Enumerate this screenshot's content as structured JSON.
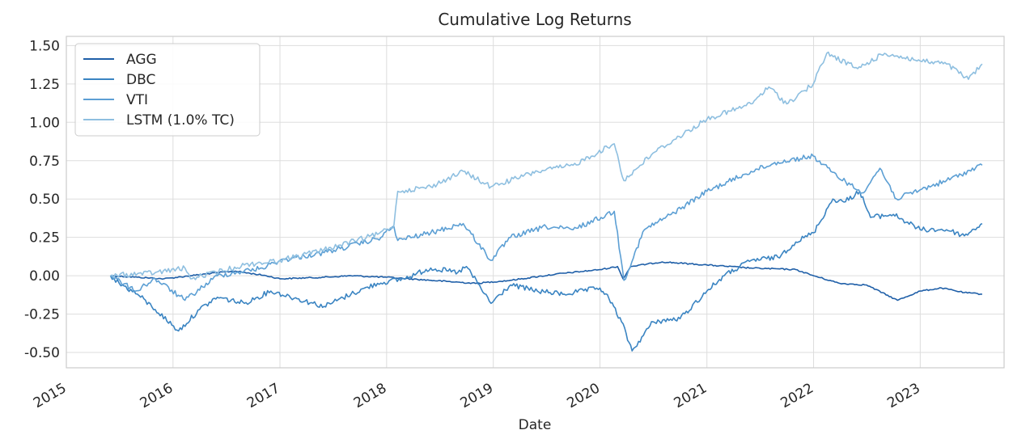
{
  "chart_data": {
    "type": "line",
    "title": "Cumulative Log Returns",
    "xlabel": "Date",
    "ylabel": "",
    "xlim": [
      "2015-01-01",
      "2023-10-15"
    ],
    "ylim": [
      -0.6,
      1.56
    ],
    "grid": true,
    "legend_position": "top-left",
    "x_ticks": [
      "2015",
      "2016",
      "2017",
      "2018",
      "2019",
      "2020",
      "2021",
      "2022",
      "2023"
    ],
    "y_ticks": [
      "-0.50",
      "-0.25",
      "0.00",
      "0.25",
      "0.50",
      "0.75",
      "1.00",
      "1.25",
      "1.50"
    ],
    "y_tick_values": [
      -0.5,
      -0.25,
      0,
      0.25,
      0.5,
      0.75,
      1.0,
      1.25,
      1.5
    ],
    "series": [
      {
        "name": "AGG",
        "color": "#1f5fa8",
        "points": [
          [
            "2015-06-01",
            0.0
          ],
          [
            "2015-09-01",
            -0.01
          ],
          [
            "2015-12-01",
            -0.02
          ],
          [
            "2016-03-01",
            0.0
          ],
          [
            "2016-06-01",
            0.02
          ],
          [
            "2016-08-01",
            0.03
          ],
          [
            "2016-11-15",
            0.0
          ],
          [
            "2017-01-01",
            -0.02
          ],
          [
            "2017-06-01",
            -0.01
          ],
          [
            "2017-09-01",
            0.0
          ],
          [
            "2018-01-01",
            -0.01
          ],
          [
            "2018-06-01",
            -0.03
          ],
          [
            "2018-11-01",
            -0.05
          ],
          [
            "2019-03-01",
            -0.03
          ],
          [
            "2019-08-01",
            0.01
          ],
          [
            "2020-01-01",
            0.04
          ],
          [
            "2020-03-01",
            0.06
          ],
          [
            "2020-03-20",
            -0.02
          ],
          [
            "2020-04-15",
            0.06
          ],
          [
            "2020-08-01",
            0.09
          ],
          [
            "2021-01-01",
            0.07
          ],
          [
            "2021-06-01",
            0.05
          ],
          [
            "2021-11-01",
            0.04
          ],
          [
            "2022-01-01",
            0.0
          ],
          [
            "2022-04-01",
            -0.05
          ],
          [
            "2022-07-01",
            -0.06
          ],
          [
            "2022-10-15",
            -0.16
          ],
          [
            "2023-01-01",
            -0.1
          ],
          [
            "2023-03-15",
            -0.08
          ],
          [
            "2023-06-01",
            -0.11
          ],
          [
            "2023-08-01",
            -0.12
          ]
        ]
      },
      {
        "name": "DBC",
        "color": "#3a84c2",
        "points": [
          [
            "2015-06-01",
            0.0
          ],
          [
            "2015-07-01",
            -0.05
          ],
          [
            "2015-09-01",
            -0.12
          ],
          [
            "2015-11-01",
            -0.22
          ],
          [
            "2016-01-20",
            -0.36
          ],
          [
            "2016-04-01",
            -0.22
          ],
          [
            "2016-06-01",
            -0.14
          ],
          [
            "2016-09-01",
            -0.18
          ],
          [
            "2016-12-01",
            -0.1
          ],
          [
            "2017-03-01",
            -0.15
          ],
          [
            "2017-06-01",
            -0.2
          ],
          [
            "2017-09-01",
            -0.12
          ],
          [
            "2017-12-01",
            -0.05
          ],
          [
            "2018-03-01",
            -0.02
          ],
          [
            "2018-06-01",
            0.05
          ],
          [
            "2018-09-01",
            0.02
          ],
          [
            "2018-10-01",
            0.06
          ],
          [
            "2018-12-24",
            -0.18
          ],
          [
            "2019-03-01",
            -0.06
          ],
          [
            "2019-06-01",
            -0.1
          ],
          [
            "2019-09-01",
            -0.12
          ],
          [
            "2020-01-01",
            -0.08
          ],
          [
            "2020-02-01",
            -0.15
          ],
          [
            "2020-03-15",
            -0.3
          ],
          [
            "2020-04-20",
            -0.49
          ],
          [
            "2020-07-01",
            -0.3
          ],
          [
            "2020-10-01",
            -0.28
          ],
          [
            "2021-01-01",
            -0.1
          ],
          [
            "2021-03-01",
            0.0
          ],
          [
            "2021-06-01",
            0.1
          ],
          [
            "2021-09-01",
            0.12
          ],
          [
            "2021-11-01",
            0.22
          ],
          [
            "2022-01-01",
            0.28
          ],
          [
            "2022-03-08",
            0.5
          ],
          [
            "2022-04-15",
            0.48
          ],
          [
            "2022-06-08",
            0.55
          ],
          [
            "2022-07-15",
            0.38
          ],
          [
            "2022-10-01",
            0.4
          ],
          [
            "2023-01-01",
            0.3
          ],
          [
            "2023-04-01",
            0.3
          ],
          [
            "2023-06-01",
            0.26
          ],
          [
            "2023-08-01",
            0.34
          ]
        ]
      },
      {
        "name": "VTI",
        "color": "#5c9fd4",
        "points": [
          [
            "2015-06-01",
            0.0
          ],
          [
            "2015-08-25",
            -0.1
          ],
          [
            "2015-11-01",
            -0.02
          ],
          [
            "2016-02-11",
            -0.16
          ],
          [
            "2016-06-01",
            0.0
          ],
          [
            "2016-11-01",
            0.05
          ],
          [
            "2017-01-01",
            0.1
          ],
          [
            "2017-06-01",
            0.15
          ],
          [
            "2017-12-01",
            0.24
          ],
          [
            "2018-01-26",
            0.32
          ],
          [
            "2018-02-08",
            0.23
          ],
          [
            "2018-06-01",
            0.28
          ],
          [
            "2018-09-20",
            0.34
          ],
          [
            "2018-12-24",
            0.1
          ],
          [
            "2019-03-01",
            0.25
          ],
          [
            "2019-07-01",
            0.32
          ],
          [
            "2019-10-01",
            0.3
          ],
          [
            "2020-02-19",
            0.42
          ],
          [
            "2020-03-23",
            -0.03
          ],
          [
            "2020-06-01",
            0.3
          ],
          [
            "2020-09-01",
            0.4
          ],
          [
            "2021-01-01",
            0.55
          ],
          [
            "2021-06-01",
            0.68
          ],
          [
            "2021-09-01",
            0.74
          ],
          [
            "2021-12-31",
            0.78
          ],
          [
            "2022-03-01",
            0.68
          ],
          [
            "2022-06-16",
            0.54
          ],
          [
            "2022-08-16",
            0.7
          ],
          [
            "2022-10-12",
            0.5
          ],
          [
            "2023-01-01",
            0.56
          ],
          [
            "2023-04-01",
            0.62
          ],
          [
            "2023-08-01",
            0.72
          ]
        ]
      },
      {
        "name": "LSTM (1.0% TC)",
        "color": "#8ebfe0",
        "points": [
          [
            "2015-06-01",
            0.0
          ],
          [
            "2015-11-01",
            0.02
          ],
          [
            "2016-02-11",
            0.05
          ],
          [
            "2016-03-01",
            -0.02
          ],
          [
            "2016-09-01",
            0.07
          ],
          [
            "2017-01-01",
            0.1
          ],
          [
            "2017-06-01",
            0.17
          ],
          [
            "2017-12-01",
            0.27
          ],
          [
            "2018-01-26",
            0.33
          ],
          [
            "2018-02-08",
            0.55
          ],
          [
            "2018-06-01",
            0.58
          ],
          [
            "2018-09-20",
            0.68
          ],
          [
            "2018-12-24",
            0.58
          ],
          [
            "2019-06-01",
            0.68
          ],
          [
            "2019-10-01",
            0.72
          ],
          [
            "2020-02-19",
            0.86
          ],
          [
            "2020-03-23",
            0.62
          ],
          [
            "2020-07-01",
            0.8
          ],
          [
            "2021-01-01",
            1.02
          ],
          [
            "2021-06-01",
            1.12
          ],
          [
            "2021-08-01",
            1.23
          ],
          [
            "2021-10-01",
            1.12
          ],
          [
            "2021-12-31",
            1.25
          ],
          [
            "2022-02-15",
            1.45
          ],
          [
            "2022-06-01",
            1.35
          ],
          [
            "2022-09-01",
            1.45
          ],
          [
            "2023-01-01",
            1.4
          ],
          [
            "2023-04-01",
            1.38
          ],
          [
            "2023-06-15",
            1.28
          ],
          [
            "2023-08-01",
            1.38
          ]
        ]
      }
    ]
  }
}
